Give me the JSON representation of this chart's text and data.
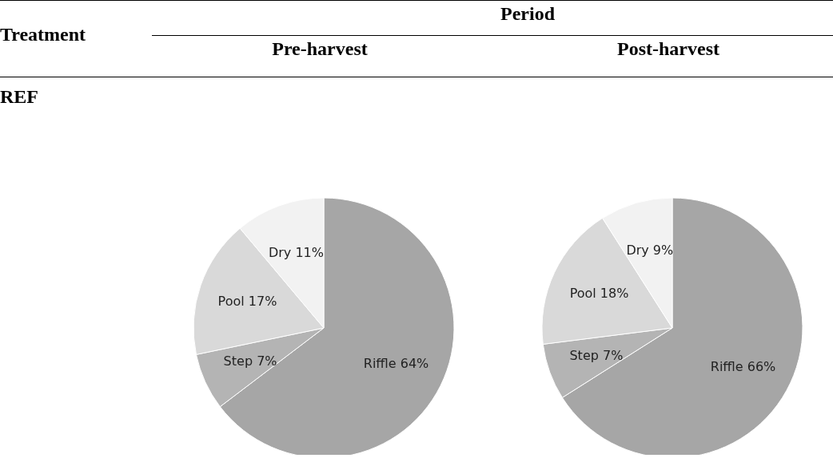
{
  "chart_data": [
    {
      "type": "other",
      "annotations": [
        "Treatment",
        "Period",
        "REF"
      ]
    },
    {
      "type": "pie",
      "title": "Pre-harvest",
      "categories": [
        "Riffle",
        "Step",
        "Pool",
        "Dry"
      ],
      "values": [
        64,
        7,
        17,
        11
      ],
      "value_labels": [
        "64%",
        "7%",
        "17%",
        "11%"
      ],
      "colors": [
        "#a6a6a6",
        "#b4b4b4",
        "#d9d9d9",
        "#f2f2f2"
      ]
    },
    {
      "type": "pie",
      "title": "Post-harvest",
      "categories": [
        "Riffle",
        "Step",
        "Pool",
        "Dry"
      ],
      "values": [
        66,
        7,
        18,
        9
      ],
      "value_labels": [
        "66%",
        "7%",
        "18%",
        "9%"
      ],
      "colors": [
        "#a6a6a6",
        "#b4b4b4",
        "#d9d9d9",
        "#f2f2f2"
      ]
    }
  ]
}
